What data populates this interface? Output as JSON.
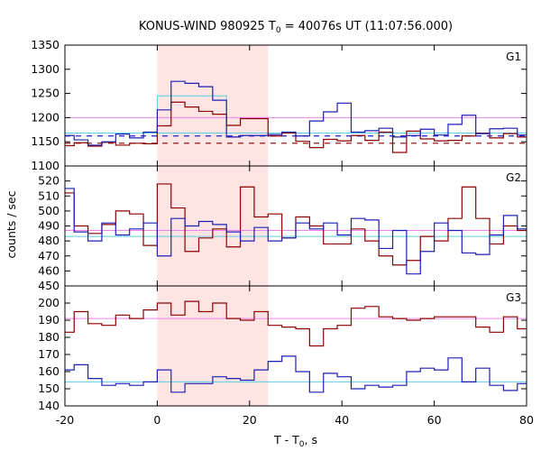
{
  "chart_data": {
    "type": "line",
    "title_main": "KONUS-WIND 980925 T",
    "title_sub": "0",
    "title_rest": " = 40076s UT (11:07:56.000)",
    "xlabel_main": "T - T",
    "xlabel_sub": "0",
    "xlabel_rest": ", s",
    "ylabel": "counts / sec",
    "xlim": [
      -20,
      80
    ],
    "x_ticks": [
      "-20",
      "0",
      "20",
      "40",
      "60",
      "80"
    ],
    "highlight_interval": [
      0,
      24
    ],
    "colors": {
      "red": "#8b0000",
      "blue": "#1e1eb4",
      "pink": "#ee82ee",
      "cyan": "#5fcde4",
      "blue_dash": "#1e1ecc",
      "red_dash": "#8b0000",
      "highlight": "#ffe4e4"
    },
    "panels": [
      {
        "label": "G1",
        "ylim": [
          1100,
          1350
        ],
        "y_ticks": [
          1100,
          1150,
          1200,
          1250,
          1300,
          1350
        ],
        "background_red": 1200,
        "background_blue": 1168,
        "dashed_red": 1147,
        "dashed_blue": 1162,
        "red": {
          "edges": [
            -20,
            -18,
            -15,
            -12,
            -9,
            -6,
            -3,
            0,
            3,
            6,
            9,
            12,
            15,
            18,
            21,
            24,
            27,
            30,
            33,
            36,
            39,
            42,
            45,
            48,
            51,
            54,
            57,
            60,
            63,
            66,
            69,
            72,
            75,
            78,
            80
          ],
          "values": [
            1142,
            1148,
            1141,
            1149,
            1143,
            1147,
            1146,
            1183,
            1232,
            1222,
            1213,
            1207,
            1184,
            1198,
            1198,
            1162,
            1168,
            1151,
            1138,
            1155,
            1152,
            1163,
            1153,
            1170,
            1128,
            1172,
            1156,
            1152,
            1153,
            1162,
            1168,
            1158,
            1167,
            1160
          ]
        },
        "blue": {
          "edges": [
            -20,
            -18,
            -15,
            -12,
            -9,
            -6,
            -3,
            0,
            3,
            6,
            9,
            12,
            15,
            18,
            21,
            24,
            27,
            30,
            33,
            36,
            39,
            42,
            45,
            48,
            51,
            54,
            57,
            60,
            63,
            66,
            69,
            72,
            75,
            78,
            80
          ],
          "values": [
            1163,
            1154,
            1143,
            1150,
            1166,
            1158,
            1170,
            1216,
            1275,
            1271,
            1264,
            1236,
            1160,
            1163,
            1163,
            1165,
            1170,
            1162,
            1193,
            1212,
            1230,
            1170,
            1173,
            1178,
            1160,
            1163,
            1176,
            1164,
            1186,
            1205,
            1167,
            1177,
            1178,
            1164
          ]
        },
        "cyan_boxes": [
          {
            "x0": 0,
            "x1": 15,
            "y": 1245
          }
        ]
      },
      {
        "label": "G2",
        "ylim": [
          450,
          530
        ],
        "y_ticks": [
          450,
          460,
          470,
          480,
          490,
          500,
          510,
          520
        ],
        "background_red": 487,
        "background_blue": 483,
        "red": {
          "edges": [
            -20,
            -18,
            -15,
            -12,
            -9,
            -6,
            -3,
            0,
            3,
            6,
            9,
            12,
            15,
            18,
            21,
            24,
            27,
            30,
            33,
            36,
            39,
            42,
            45,
            48,
            51,
            54,
            57,
            60,
            63,
            66,
            69,
            72,
            75,
            78,
            80
          ],
          "values": [
            512,
            490,
            485,
            491,
            500,
            498,
            477,
            518,
            502,
            473,
            482,
            488,
            476,
            516,
            496,
            498,
            482,
            496,
            490,
            478,
            478,
            488,
            480,
            470,
            464,
            467,
            483,
            480,
            495,
            516,
            495,
            478,
            490,
            487
          ]
        },
        "blue": {
          "edges": [
            -20,
            -18,
            -15,
            -12,
            -9,
            -6,
            -3,
            0,
            3,
            6,
            9,
            12,
            15,
            18,
            21,
            24,
            27,
            30,
            33,
            36,
            39,
            42,
            45,
            48,
            51,
            54,
            57,
            60,
            63,
            66,
            69,
            72,
            75,
            78,
            80
          ],
          "values": [
            515,
            486,
            480,
            492,
            484,
            488,
            492,
            470,
            495,
            490,
            493,
            491,
            486,
            480,
            489,
            480,
            482,
            492,
            488,
            492,
            484,
            495,
            494,
            475,
            487,
            458,
            473,
            492,
            487,
            472,
            471,
            484,
            497,
            488
          ]
        }
      },
      {
        "label": "G3",
        "ylim": [
          140,
          210
        ],
        "y_ticks": [
          140,
          150,
          160,
          170,
          180,
          190,
          200
        ],
        "background_red": 191,
        "background_blue": 154,
        "red": {
          "edges": [
            -20,
            -18,
            -15,
            -12,
            -9,
            -6,
            -3,
            0,
            3,
            6,
            9,
            12,
            15,
            18,
            21,
            24,
            27,
            30,
            33,
            36,
            39,
            42,
            45,
            48,
            51,
            54,
            57,
            60,
            63,
            66,
            69,
            72,
            75,
            78,
            80
          ],
          "values": [
            183,
            195,
            188,
            187,
            193,
            191,
            196,
            200,
            193,
            201,
            195,
            200,
            191,
            190,
            195,
            187,
            186,
            185,
            175,
            185,
            187,
            197,
            198,
            192,
            191,
            190,
            191,
            192,
            192,
            192,
            186,
            183,
            192,
            185
          ]
        },
        "blue": {
          "edges": [
            -20,
            -18,
            -15,
            -12,
            -9,
            -6,
            -3,
            0,
            3,
            6,
            9,
            12,
            15,
            18,
            21,
            24,
            27,
            30,
            33,
            36,
            39,
            42,
            45,
            48,
            51,
            54,
            57,
            60,
            63,
            66,
            69,
            72,
            75,
            78,
            80
          ],
          "values": [
            161,
            164,
            156,
            152,
            153,
            152,
            154,
            161,
            148,
            153,
            153,
            157,
            156,
            155,
            161,
            166,
            169,
            160,
            148,
            159,
            157,
            150,
            152,
            151,
            152,
            160,
            162,
            161,
            168,
            154,
            162,
            152,
            149,
            153
          ]
        }
      }
    ]
  }
}
